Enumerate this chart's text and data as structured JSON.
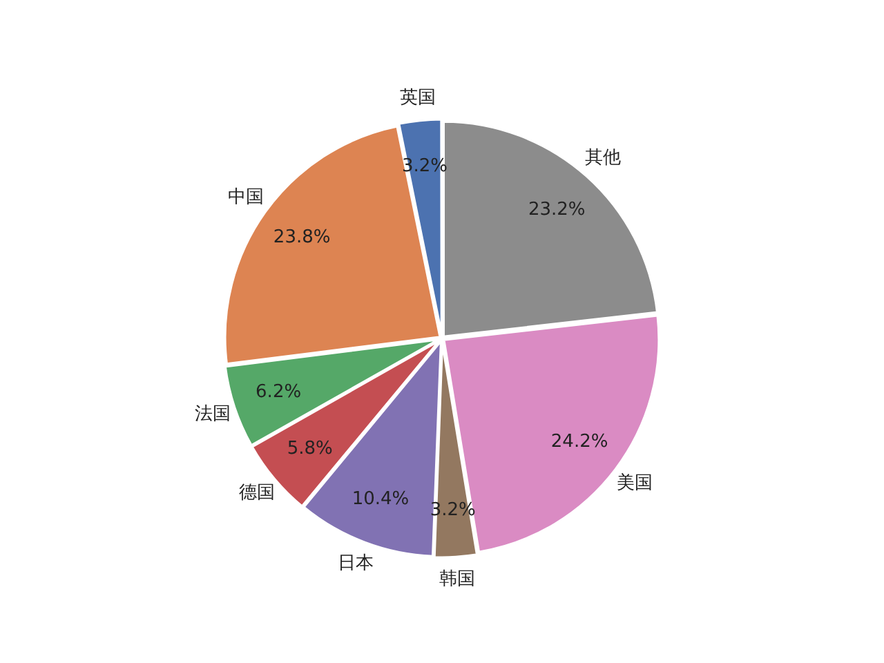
{
  "chart_data": {
    "type": "pie",
    "categories": [
      "英国",
      "中国",
      "法国",
      "德国",
      "日本",
      "韩国",
      "美国",
      "其他"
    ],
    "values": [
      3.2,
      23.8,
      6.2,
      5.8,
      10.4,
      3.2,
      24.2,
      23.2
    ],
    "value_labels": [
      "3.2%",
      "23.8%",
      "6.2%",
      "5.8%",
      "10.4%",
      "3.2%",
      "24.2%",
      "23.2%"
    ],
    "colors": [
      "#4c72b0",
      "#dd8452",
      "#55a868",
      "#c44e52",
      "#8172b3",
      "#937860",
      "#da8bc3",
      "#8c8c8c"
    ],
    "legend": false
  }
}
